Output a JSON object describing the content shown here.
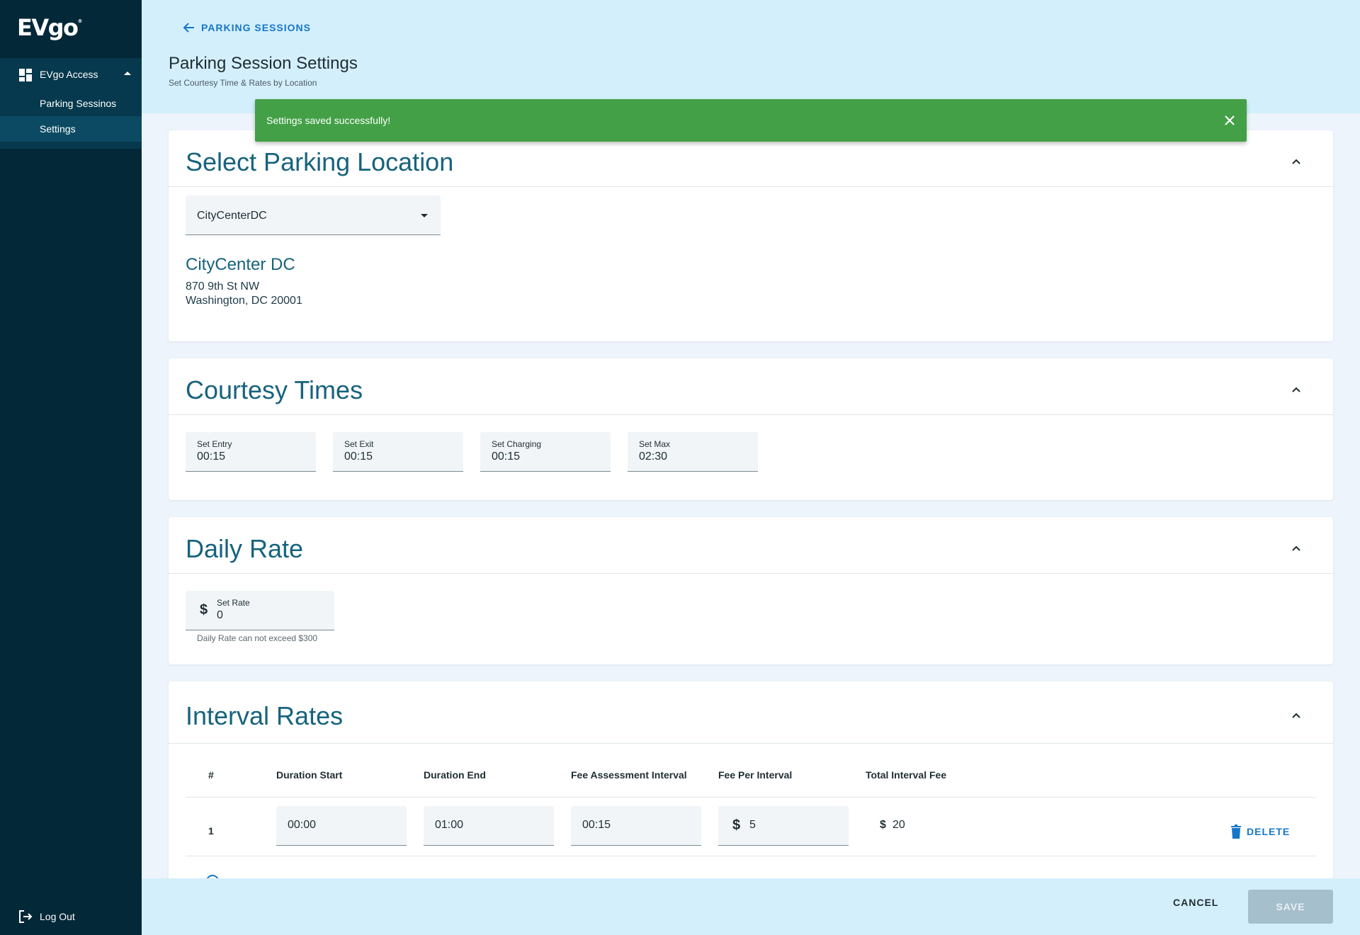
{
  "brand": {
    "logo": "EVgo",
    "logo_mark": "®"
  },
  "sidebar": {
    "group_label": "EVgo Access",
    "items": [
      {
        "label": "Parking Sessinos"
      },
      {
        "label": "Settings"
      }
    ],
    "logout_label": "Log Out"
  },
  "header": {
    "back_label": "PARKING SESSIONS",
    "title": "Parking Session Settings",
    "subtitle": "Set Courtesy Time & Rates by Location"
  },
  "toast": {
    "message": "Settings saved successfully!"
  },
  "location_card": {
    "title": "Select Parking Location",
    "selected": "CityCenterDC",
    "location_name": "CityCenter DC",
    "address_line1": "870 9th St NW",
    "address_line2": "Washington, DC 20001"
  },
  "courtesy_card": {
    "title": "Courtesy Times",
    "fields": [
      {
        "label": "Set Entry",
        "value": "00:15"
      },
      {
        "label": "Set Exit",
        "value": "00:15"
      },
      {
        "label": "Set Charging",
        "value": "00:15"
      },
      {
        "label": "Set Max",
        "value": "02:30"
      }
    ]
  },
  "daily_card": {
    "title": "Daily Rate",
    "currency": "$",
    "rate_label": "Set Rate",
    "rate_value": "0",
    "helper": "Daily Rate can not exceed $300"
  },
  "interval_card": {
    "title": "Interval Rates",
    "columns": [
      "#",
      "Duration Start",
      "Duration End",
      "Fee Assessment Interval",
      "Fee Per Interval",
      "Total Interval Fee"
    ],
    "rows": [
      {
        "num": "1",
        "start": "00:00",
        "end": "01:00",
        "interval": "00:15",
        "fee_currency": "$",
        "fee": "5",
        "total_currency": "$",
        "total": "20",
        "delete_label": "DELETE"
      }
    ]
  },
  "footer": {
    "cancel_label": "CANCEL",
    "save_label": "SAVE"
  },
  "colors": {
    "sidebar": "#032838",
    "header": "#d4effc",
    "toast": "#43a047",
    "accent": "#1676c9",
    "title": "#17637d",
    "save_disabled": "#a6bfcc"
  }
}
